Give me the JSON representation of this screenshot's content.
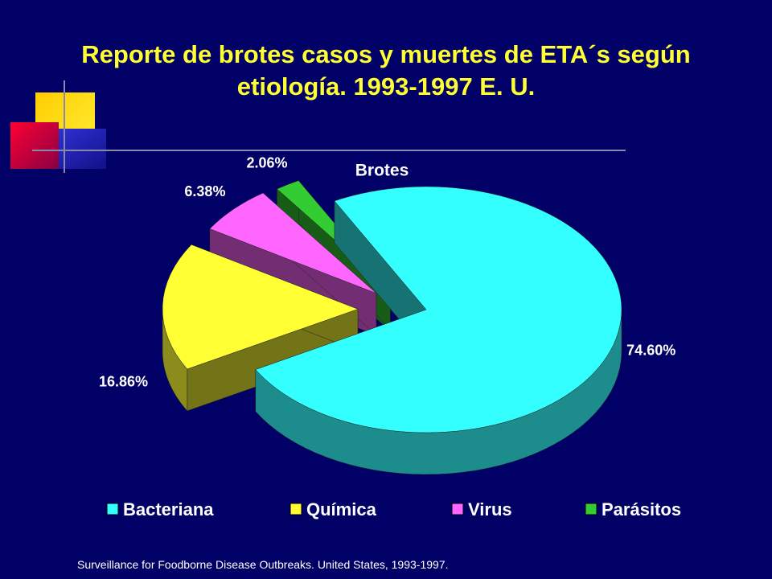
{
  "chart_data": {
    "type": "pie3d",
    "title": "Reporte de brotes casos y muertes de ETA´s según etiología. 1993-1997 E. U.",
    "subtitle": "Brotes",
    "categories": [
      "Bacteriana",
      "Química",
      "Virus",
      "Parásitos"
    ],
    "values": [
      74.6,
      16.86,
      6.38,
      2.06
    ],
    "value_labels": [
      "74.60%",
      "16.86%",
      "6.38%",
      "2.06%"
    ],
    "colors": [
      "#33ffff",
      "#ffff33",
      "#ff66ff",
      "#33cc33"
    ],
    "legend": "bottom",
    "source": "Surveillance for Foodborne Disease Outbreaks. United States, 1993-1997."
  }
}
